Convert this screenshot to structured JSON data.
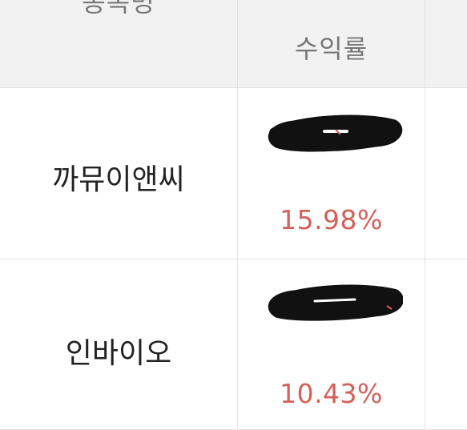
{
  "table": {
    "header": {
      "name_col": "종목명",
      "return_col": "수익률"
    },
    "rows": [
      {
        "name": "까뮤이앤씨",
        "return_pct": "15.98%",
        "amount_redacted": true
      },
      {
        "name": "인바이오",
        "return_pct": "10.43%",
        "amount_redacted": true
      }
    ]
  },
  "colors": {
    "header_bg": "#f2f2f2",
    "header_text": "#777777",
    "name_text": "#222222",
    "positive_return": "#d4605a",
    "redaction": "#111111"
  }
}
